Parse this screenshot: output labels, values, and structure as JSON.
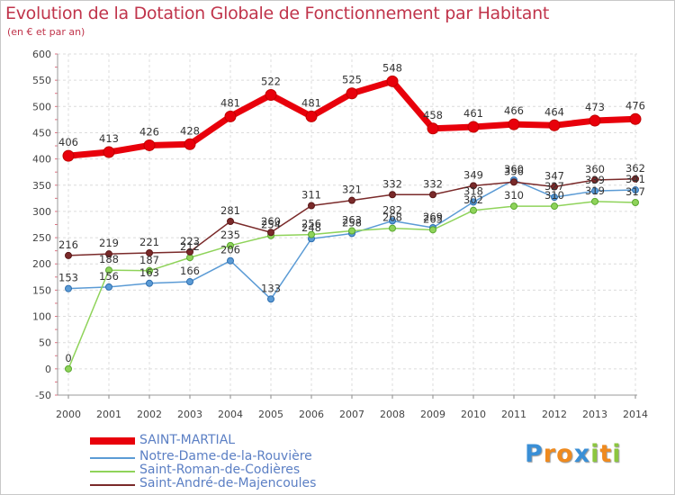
{
  "title": "Evolution de la Dotation Globale de Fonctionnement par Habitant",
  "subtitle": "(en € et par an)",
  "logo": {
    "text": "Proxiti",
    "letters": [
      "P",
      "r",
      "o",
      "x",
      "i",
      "t",
      "i"
    ],
    "colors": [
      "#3a8fd6",
      "#ef8a1e",
      "#ef8a1e",
      "#3a8fd6",
      "#8cc63f",
      "#ef8a1e",
      "#8cc63f"
    ]
  },
  "chart_data": {
    "type": "line",
    "title": "Evolution de la Dotation Globale de Fonctionnement par Habitant",
    "subtitle": "(en € et par an)",
    "xlabel": "",
    "ylabel": "",
    "x": [
      "2000",
      "2001",
      "2002",
      "2003",
      "2004",
      "2005",
      "2006",
      "2007",
      "2008",
      "2009",
      "2010",
      "2011",
      "2012",
      "2013",
      "2014"
    ],
    "ylim": [
      -50,
      600
    ],
    "yticks": [
      "-50",
      "0",
      "50",
      "100",
      "150",
      "200",
      "250",
      "300",
      "350",
      "400",
      "450",
      "500",
      "550",
      "600"
    ],
    "grid": true,
    "legend": "bottom-left",
    "series": [
      {
        "name": "SAINT-MARTIAL",
        "color": "#e8000b",
        "values": [
          406,
          413,
          426,
          428,
          481,
          522,
          481,
          525,
          548,
          458,
          461,
          466,
          464,
          473,
          476
        ],
        "labels": [
          "406",
          "413",
          "426",
          "428",
          "481",
          "522",
          "481",
          "525",
          "548",
          "458",
          "461",
          "466",
          "464",
          "473",
          "476"
        ]
      },
      {
        "name": "Notre-Dame-de-la-Rouvière",
        "color": "#5b9bd5",
        "values": [
          153,
          156,
          163,
          166,
          206,
          133,
          248,
          258,
          282,
          269,
          318,
          360,
          327,
          339,
          341
        ],
        "labels": [
          "153",
          "156",
          "163",
          "166",
          "206",
          "133",
          "248",
          "258",
          "282",
          "269",
          "318",
          "360",
          "327",
          "339",
          "341"
        ]
      },
      {
        "name": "Saint-Roman-de-Codières",
        "color": "#8fd35a",
        "values": [
          0,
          188,
          187,
          212,
          235,
          254,
          256,
          263,
          268,
          265,
          302,
          310,
          310,
          319,
          317
        ],
        "labels": [
          "0",
          "188",
          "187",
          "212",
          "235",
          "254",
          "256",
          "263",
          "268",
          "265",
          "302",
          "310",
          "310",
          "319",
          "317"
        ]
      },
      {
        "name": "Saint-André-de-Majencoules",
        "color": "#7a2a2a",
        "values": [
          216,
          219,
          221,
          223,
          281,
          260,
          311,
          321,
          332,
          332,
          349,
          356,
          347,
          360,
          362
        ],
        "labels": [
          "216",
          "219",
          "221",
          "223",
          "281",
          "260",
          "311",
          "321",
          "332",
          "332",
          "349",
          "356",
          "347",
          "360",
          "362"
        ]
      }
    ]
  }
}
